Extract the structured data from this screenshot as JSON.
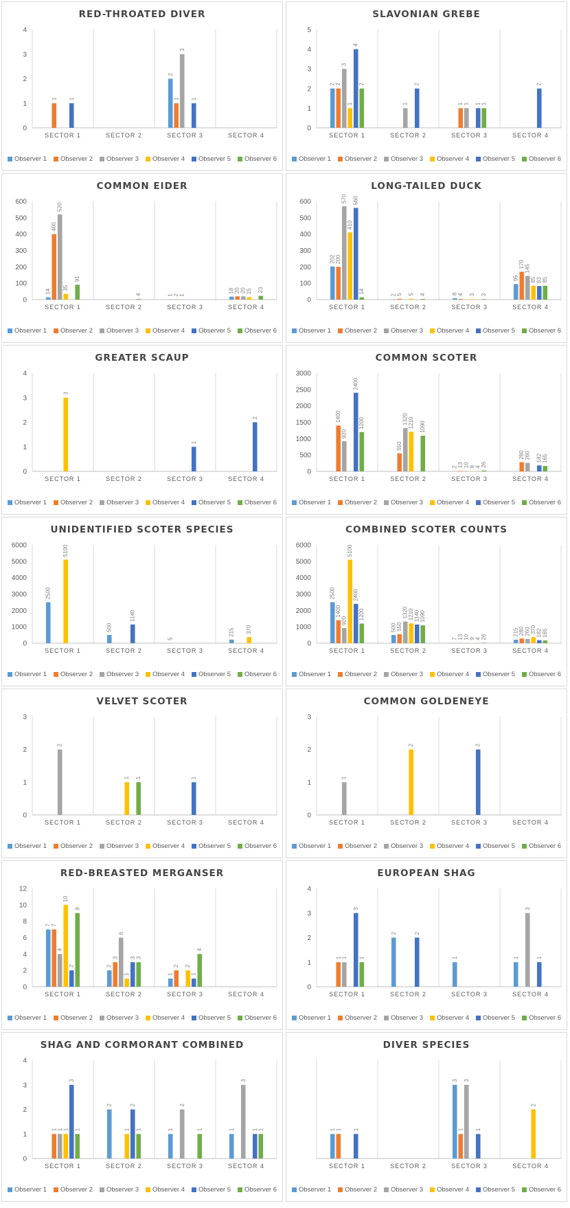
{
  "observers": [
    "Observer 1",
    "Observer 2",
    "Observer 3",
    "Observer 4",
    "Observer 5",
    "Observer 6"
  ],
  "colors": [
    "#5B9BD5",
    "#ED7D31",
    "#A5A5A5",
    "#FFC000",
    "#4472C4",
    "#70AD47"
  ],
  "chart_data": [
    {
      "type": "bar",
      "title": "RED-THROATED DIVER",
      "categories": [
        "SECTOR 1",
        "SECTOR 2",
        "SECTOR 3",
        "SECTOR 4"
      ],
      "ylim": [
        0,
        4
      ],
      "yticks": [
        0,
        1,
        2,
        3,
        4
      ],
      "series": [
        {
          "name": "Observer 1",
          "values": [
            null,
            null,
            2,
            null
          ]
        },
        {
          "name": "Observer 2",
          "values": [
            1,
            null,
            1,
            null
          ]
        },
        {
          "name": "Observer 3",
          "values": [
            null,
            null,
            3,
            null
          ]
        },
        {
          "name": "Observer 4",
          "values": [
            null,
            null,
            null,
            null
          ]
        },
        {
          "name": "Observer 5",
          "values": [
            1,
            null,
            1,
            null
          ]
        },
        {
          "name": "Observer 6",
          "values": [
            null,
            null,
            null,
            null
          ]
        }
      ]
    },
    {
      "type": "bar",
      "title": "SLAVONIAN GREBE",
      "categories": [
        "SECTOR 1",
        "SECTOR 2",
        "SECTOR 3",
        "SECTOR 4"
      ],
      "ylim": [
        0,
        5
      ],
      "yticks": [
        0,
        1,
        2,
        3,
        4,
        5
      ],
      "series": [
        {
          "name": "Observer 1",
          "values": [
            2,
            null,
            null,
            null
          ]
        },
        {
          "name": "Observer 2",
          "values": [
            2,
            null,
            1,
            null
          ]
        },
        {
          "name": "Observer 3",
          "values": [
            3,
            1,
            1,
            null
          ]
        },
        {
          "name": "Observer 4",
          "values": [
            1,
            null,
            null,
            null
          ]
        },
        {
          "name": "Observer 5",
          "values": [
            4,
            2,
            1,
            2
          ]
        },
        {
          "name": "Observer 6",
          "values": [
            2,
            null,
            1,
            null
          ]
        }
      ]
    },
    {
      "type": "bar",
      "title": "COMMON EIDER",
      "categories": [
        "SECTOR 1",
        "SECTOR 2",
        "SECTOR 3",
        "SECTOR 4"
      ],
      "ylim": [
        0,
        600
      ],
      "yticks": [
        0,
        100,
        200,
        300,
        400,
        500,
        600
      ],
      "series": [
        {
          "name": "Observer 1",
          "values": [
            14,
            null,
            1,
            18
          ]
        },
        {
          "name": "Observer 2",
          "values": [
            400,
            null,
            2,
            20
          ]
        },
        {
          "name": "Observer 3",
          "values": [
            520,
            null,
            1,
            20
          ]
        },
        {
          "name": "Observer 4",
          "values": [
            35,
            null,
            null,
            15
          ]
        },
        {
          "name": "Observer 5",
          "values": [
            null,
            null,
            null,
            null
          ]
        },
        {
          "name": "Observer 6",
          "values": [
            91,
            4,
            null,
            23
          ]
        }
      ]
    },
    {
      "type": "bar",
      "title": "LONG-TAILED DUCK",
      "categories": [
        "SECTOR 1",
        "SECTOR 2",
        "SECTOR 3",
        "SECTOR 4"
      ],
      "ylim": [
        0,
        600
      ],
      "yticks": [
        0,
        100,
        200,
        300,
        400,
        500,
        600
      ],
      "series": [
        {
          "name": "Observer 1",
          "values": [
            202,
            2,
            8,
            95
          ]
        },
        {
          "name": "Observer 2",
          "values": [
            200,
            5,
            4,
            170
          ]
        },
        {
          "name": "Observer 3",
          "values": [
            570,
            null,
            null,
            145
          ]
        },
        {
          "name": "Observer 4",
          "values": [
            410,
            5,
            3,
            85
          ]
        },
        {
          "name": "Observer 5",
          "values": [
            560,
            null,
            null,
            83
          ]
        },
        {
          "name": "Observer 6",
          "values": [
            14,
            4,
            3,
            85
          ]
        }
      ]
    },
    {
      "type": "bar",
      "title": "GREATER SCAUP",
      "categories": [
        "SECTOR 1",
        "SECTOR 2",
        "SECTOR 3",
        "SECTOR 4"
      ],
      "ylim": [
        0,
        4
      ],
      "yticks": [
        0,
        1,
        2,
        3,
        4
      ],
      "series": [
        {
          "name": "Observer 1",
          "values": [
            null,
            null,
            null,
            null
          ]
        },
        {
          "name": "Observer 2",
          "values": [
            null,
            null,
            null,
            null
          ]
        },
        {
          "name": "Observer 3",
          "values": [
            null,
            null,
            null,
            null
          ]
        },
        {
          "name": "Observer 4",
          "values": [
            3,
            null,
            null,
            null
          ]
        },
        {
          "name": "Observer 5",
          "values": [
            null,
            null,
            1,
            2
          ]
        },
        {
          "name": "Observer 6",
          "values": [
            null,
            null,
            null,
            null
          ]
        }
      ]
    },
    {
      "type": "bar",
      "title": "COMMON SCOTER",
      "categories": [
        "SECTOR 1",
        "SECTOR 2",
        "SECTOR 3",
        "SECTOR 4"
      ],
      "ylim": [
        0,
        3000
      ],
      "yticks": [
        0,
        500,
        1000,
        1500,
        2000,
        2500,
        3000
      ],
      "series": [
        {
          "name": "Observer 1",
          "values": [
            null,
            null,
            2,
            null
          ]
        },
        {
          "name": "Observer 2",
          "values": [
            1400,
            550,
            13,
            280
          ]
        },
        {
          "name": "Observer 3",
          "values": [
            920,
            1320,
            10,
            260
          ]
        },
        {
          "name": "Observer 4",
          "values": [
            null,
            1210,
            9,
            null
          ]
        },
        {
          "name": "Observer 5",
          "values": [
            2400,
            null,
            4,
            182
          ]
        },
        {
          "name": "Observer 6",
          "values": [
            1200,
            1090,
            26,
            165
          ]
        }
      ]
    },
    {
      "type": "bar",
      "title": "UNIDENTIFIED SCOTER SPECIES",
      "categories": [
        "SECTOR 1",
        "SECTOR 2",
        "SECTOR 3",
        "SECTOR 4"
      ],
      "ylim": [
        0,
        6000
      ],
      "yticks": [
        0,
        1000,
        2000,
        3000,
        4000,
        5000,
        6000
      ],
      "series": [
        {
          "name": "Observer 1",
          "values": [
            2500,
            500,
            5,
            215
          ]
        },
        {
          "name": "Observer 2",
          "values": [
            null,
            null,
            null,
            null
          ]
        },
        {
          "name": "Observer 3",
          "values": [
            null,
            null,
            null,
            null
          ]
        },
        {
          "name": "Observer 4",
          "values": [
            5100,
            null,
            null,
            370
          ]
        },
        {
          "name": "Observer 5",
          "values": [
            null,
            1140,
            null,
            null
          ]
        },
        {
          "name": "Observer 6",
          "values": [
            null,
            null,
            null,
            null
          ]
        }
      ]
    },
    {
      "type": "bar",
      "title": "COMBINED SCOTER COUNTS",
      "categories": [
        "SECTOR 1",
        "SECTOR 2",
        "SECTOR 3",
        "SECTOR 4"
      ],
      "ylim": [
        0,
        6000
      ],
      "yticks": [
        0,
        1000,
        2000,
        3000,
        4000,
        5000,
        6000
      ],
      "series": [
        {
          "name": "Observer 1",
          "values": [
            2500,
            500,
            7,
            215
          ]
        },
        {
          "name": "Observer 2",
          "values": [
            1400,
            550,
            13,
            280
          ]
        },
        {
          "name": "Observer 3",
          "values": [
            920,
            1320,
            10,
            260
          ]
        },
        {
          "name": "Observer 4",
          "values": [
            5100,
            1210,
            9,
            370
          ]
        },
        {
          "name": "Observer 5",
          "values": [
            2400,
            1140,
            4,
            182
          ]
        },
        {
          "name": "Observer 6",
          "values": [
            1200,
            1090,
            26,
            165
          ]
        }
      ]
    },
    {
      "type": "bar",
      "title": "VELVET SCOTER",
      "categories": [
        "SECTOR 1",
        "SECTOR 2",
        "SECTOR 3",
        "SECTOR 4"
      ],
      "ylim": [
        0,
        3
      ],
      "yticks": [
        0,
        1,
        2,
        3
      ],
      "series": [
        {
          "name": "Observer 1",
          "values": [
            null,
            null,
            null,
            null
          ]
        },
        {
          "name": "Observer 2",
          "values": [
            null,
            null,
            null,
            null
          ]
        },
        {
          "name": "Observer 3",
          "values": [
            2,
            null,
            null,
            null
          ]
        },
        {
          "name": "Observer 4",
          "values": [
            null,
            1,
            null,
            null
          ]
        },
        {
          "name": "Observer 5",
          "values": [
            null,
            null,
            1,
            null
          ]
        },
        {
          "name": "Observer 6",
          "values": [
            null,
            1,
            null,
            null
          ]
        }
      ]
    },
    {
      "type": "bar",
      "title": "COMMON GOLDENEYE",
      "categories": [
        "SECTOR 1",
        "SECTOR 2",
        "SECTOR 3",
        "SECTOR 4"
      ],
      "ylim": [
        0,
        3
      ],
      "yticks": [
        0,
        1,
        2,
        3
      ],
      "series": [
        {
          "name": "Observer 1",
          "values": [
            null,
            null,
            null,
            null
          ]
        },
        {
          "name": "Observer 2",
          "values": [
            null,
            null,
            null,
            null
          ]
        },
        {
          "name": "Observer 3",
          "values": [
            1,
            null,
            null,
            null
          ]
        },
        {
          "name": "Observer 4",
          "values": [
            null,
            2,
            null,
            null
          ]
        },
        {
          "name": "Observer 5",
          "values": [
            null,
            null,
            2,
            null
          ]
        },
        {
          "name": "Observer 6",
          "values": [
            null,
            null,
            null,
            null
          ]
        }
      ]
    },
    {
      "type": "bar",
      "title": "RED-BREASTED MERGANSER",
      "categories": [
        "SECTOR 1",
        "SECTOR 2",
        "SECTOR 3",
        "SECTOR 4"
      ],
      "ylim": [
        0,
        12
      ],
      "yticks": [
        0,
        2,
        4,
        6,
        8,
        10,
        12
      ],
      "series": [
        {
          "name": "Observer 1",
          "values": [
            7,
            2,
            1,
            null
          ]
        },
        {
          "name": "Observer 2",
          "values": [
            7,
            3,
            2,
            null
          ]
        },
        {
          "name": "Observer 3",
          "values": [
            4,
            6,
            null,
            null
          ]
        },
        {
          "name": "Observer 4",
          "values": [
            10,
            1,
            2,
            null
          ]
        },
        {
          "name": "Observer 5",
          "values": [
            2,
            3,
            1,
            null
          ]
        },
        {
          "name": "Observer 6",
          "values": [
            9,
            3,
            4,
            null
          ]
        }
      ]
    },
    {
      "type": "bar",
      "title": "EUROPEAN SHAG",
      "categories": [
        "SECTOR 1",
        "SECTOR 2",
        "SECTOR 3",
        "SECTOR 4"
      ],
      "ylim": [
        0,
        4
      ],
      "yticks": [
        0,
        1,
        2,
        3,
        4
      ],
      "series": [
        {
          "name": "Observer 1",
          "values": [
            null,
            2,
            1,
            1
          ]
        },
        {
          "name": "Observer 2",
          "values": [
            1,
            null,
            null,
            null
          ]
        },
        {
          "name": "Observer 3",
          "values": [
            1,
            null,
            null,
            3
          ]
        },
        {
          "name": "Observer 4",
          "values": [
            null,
            null,
            null,
            null
          ]
        },
        {
          "name": "Observer 5",
          "values": [
            3,
            2,
            null,
            1
          ]
        },
        {
          "name": "Observer 6",
          "values": [
            1,
            null,
            null,
            null
          ]
        }
      ]
    },
    {
      "type": "bar",
      "title": "SHAG AND CORMORANT COMBINED",
      "categories": [
        "SECTOR 1",
        "SECTOR 2",
        "SECTOR 3",
        "SECTOR 4"
      ],
      "ylim": [
        0,
        4
      ],
      "yticks": [
        0,
        1,
        2,
        3,
        4
      ],
      "series": [
        {
          "name": "Observer 1",
          "values": [
            null,
            2,
            1,
            1
          ]
        },
        {
          "name": "Observer 2",
          "values": [
            1,
            null,
            null,
            null
          ]
        },
        {
          "name": "Observer 3",
          "values": [
            1,
            null,
            2,
            3
          ]
        },
        {
          "name": "Observer 4",
          "values": [
            1,
            1,
            null,
            null
          ]
        },
        {
          "name": "Observer 5",
          "values": [
            3,
            2,
            null,
            1
          ]
        },
        {
          "name": "Observer 6",
          "values": [
            1,
            1,
            1,
            1
          ]
        }
      ]
    },
    {
      "type": "bar",
      "title": "DIVER SPECIES",
      "categories": [
        "SECTOR 1",
        "SECTOR 2",
        "SECTOR 3",
        "SECTOR 4"
      ],
      "ylim": [
        0,
        4
      ],
      "yticks": [],
      "series": [
        {
          "name": "Observer 1",
          "values": [
            1,
            null,
            3,
            null
          ]
        },
        {
          "name": "Observer 2",
          "values": [
            1,
            null,
            1,
            null
          ]
        },
        {
          "name": "Observer 3",
          "values": [
            null,
            null,
            3,
            null
          ]
        },
        {
          "name": "Observer 4",
          "values": [
            null,
            null,
            null,
            2
          ]
        },
        {
          "name": "Observer 5",
          "values": [
            1,
            null,
            1,
            null
          ]
        },
        {
          "name": "Observer 6",
          "values": [
            null,
            null,
            null,
            null
          ]
        }
      ]
    }
  ]
}
